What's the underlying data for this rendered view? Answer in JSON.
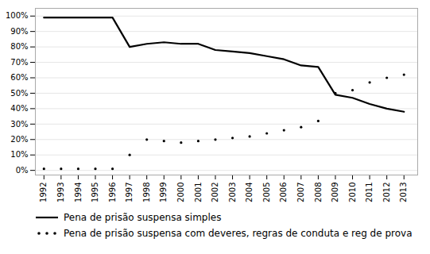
{
  "chart_data": {
    "type": "line",
    "x": [
      1992,
      1993,
      1994,
      1995,
      1996,
      1997,
      1998,
      1999,
      2000,
      2001,
      2002,
      2003,
      2004,
      2005,
      2006,
      2007,
      2008,
      2009,
      2010,
      2011,
      2012,
      2013
    ],
    "series": [
      {
        "name": "Pena de prisão suspensa simples",
        "color": "#000000",
        "line_style": "solid",
        "marker": "none",
        "values": [
          0.99,
          0.99,
          0.99,
          0.99,
          0.99,
          0.8,
          0.82,
          0.83,
          0.82,
          0.82,
          0.78,
          0.77,
          0.76,
          0.74,
          0.72,
          0.68,
          0.67,
          0.49,
          0.47,
          0.43,
          0.4,
          0.38
        ]
      },
      {
        "name": "Pena de prisão suspensa com deveres, regras de conduta e reg de prova",
        "color": "#000000",
        "line_style": "none",
        "marker": "dot",
        "values": [
          0.01,
          0.01,
          0.01,
          0.01,
          0.01,
          0.1,
          0.2,
          0.19,
          0.18,
          0.19,
          0.2,
          0.21,
          0.22,
          0.24,
          0.26,
          0.28,
          0.32,
          0.5,
          0.52,
          0.57,
          0.6,
          0.62
        ]
      }
    ],
    "xlim": [
      1991.5,
      2013.8
    ],
    "xticks": [
      1992,
      1993,
      1994,
      1995,
      1996,
      1997,
      1998,
      1999,
      2000,
      2001,
      2002,
      2003,
      2004,
      2005,
      2006,
      2007,
      2008,
      2009,
      2010,
      2011,
      2012,
      2013
    ],
    "ylim": [
      -0.03,
      1.05
    ],
    "yticks": [
      {
        "value": 0.0,
        "label": "0%"
      },
      {
        "value": 0.1,
        "label": "10%"
      },
      {
        "value": 0.2,
        "label": "20%"
      },
      {
        "value": 0.3,
        "label": "30%"
      },
      {
        "value": 0.4,
        "label": "40%"
      },
      {
        "value": 0.5,
        "label": "50%"
      },
      {
        "value": 0.6,
        "label": "60%"
      },
      {
        "value": 0.7,
        "label": "70%"
      },
      {
        "value": 0.8,
        "label": "80%"
      },
      {
        "value": 0.9,
        "label": "90%"
      },
      {
        "value": 1.0,
        "label": "100%"
      }
    ],
    "grid": true,
    "legend": "bottom"
  }
}
